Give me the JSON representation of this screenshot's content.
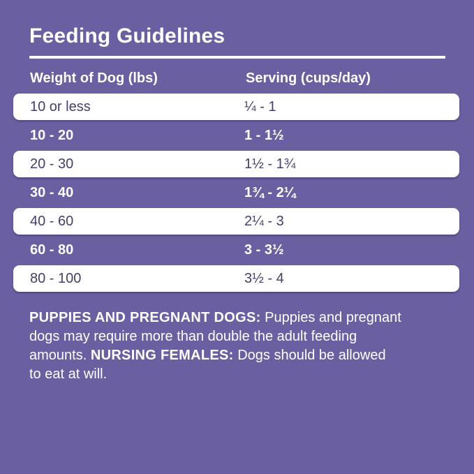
{
  "page": {
    "background_color": "#6A5FA0",
    "row_text_dark_color": "#45406B",
    "text_light_color": "#FFFFFF"
  },
  "title": "Feeding Guidelines",
  "table": {
    "columns": [
      "Weight of Dog (lbs)",
      "Serving (cups/day)"
    ],
    "rows": [
      {
        "weight": "10 or less",
        "serving": "¼ - 1"
      },
      {
        "weight": "10 - 20",
        "serving": "1 - 1½"
      },
      {
        "weight": "20 - 30",
        "serving": "1½ - 1¾"
      },
      {
        "weight": "30 - 40",
        "serving": "1¾ - 2¼"
      },
      {
        "weight": "40 - 60",
        "serving": "2¼ - 3"
      },
      {
        "weight": "60 - 80",
        "serving": "3 - 3½"
      },
      {
        "weight": "80 - 100",
        "serving": "3½ - 4"
      }
    ]
  },
  "footer": {
    "lines": [
      [
        {
          "text": "PUPPIES AND PREGNANT DOGS:",
          "bold": true
        },
        {
          "text": " Puppies and pregnant",
          "bold": false
        }
      ],
      [
        {
          "text": "dogs may require more than double the adult feeding",
          "bold": false
        }
      ],
      [
        {
          "text": "amounts. ",
          "bold": false
        },
        {
          "text": "NURSING FEMALES:",
          "bold": true
        },
        {
          "text": " Dogs should be allowed",
          "bold": false
        }
      ],
      [
        {
          "text": "to eat at will.",
          "bold": false
        }
      ]
    ]
  }
}
